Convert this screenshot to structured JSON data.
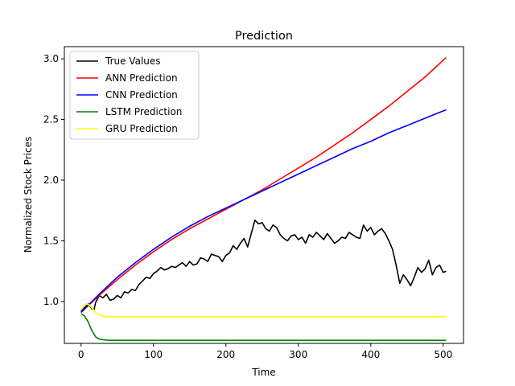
{
  "chart_data": {
    "type": "line",
    "title": "Prediction",
    "xlabel": "Time",
    "ylabel": "Normalized Stock Prices",
    "xlim": [
      -23,
      528
    ],
    "ylim": [
      0.655,
      3.1
    ],
    "xticks": [
      0,
      100,
      200,
      300,
      400,
      500
    ],
    "yticks": [
      1.0,
      1.5,
      2.0,
      2.5,
      3.0
    ],
    "ytick_labels": [
      "1.0",
      "1.5",
      "2.0",
      "2.5",
      "3.0"
    ],
    "grid": false,
    "legend": "top-left",
    "series": [
      {
        "name": "True Values",
        "color": "#000000",
        "x": [
          0,
          5,
          10,
          15,
          18,
          20,
          25,
          30,
          35,
          40,
          45,
          50,
          55,
          60,
          65,
          70,
          75,
          80,
          85,
          90,
          95,
          100,
          105,
          110,
          115,
          120,
          125,
          130,
          135,
          140,
          145,
          150,
          155,
          160,
          165,
          170,
          175,
          180,
          185,
          190,
          195,
          200,
          205,
          210,
          215,
          220,
          225,
          230,
          235,
          240,
          245,
          250,
          255,
          260,
          265,
          270,
          275,
          280,
          285,
          290,
          295,
          300,
          305,
          310,
          315,
          320,
          325,
          330,
          335,
          340,
          345,
          350,
          355,
          360,
          365,
          370,
          375,
          380,
          385,
          390,
          395,
          400,
          405,
          410,
          415,
          420,
          425,
          430,
          435,
          440,
          445,
          450,
          455,
          460,
          465,
          470,
          475,
          480,
          485,
          490,
          495,
          500,
          504
        ],
        "y": [
          0.92,
          0.95,
          0.98,
          0.94,
          0.93,
          0.99,
          1.05,
          1.03,
          1.06,
          1.01,
          1.02,
          1.05,
          1.03,
          1.08,
          1.07,
          1.1,
          1.09,
          1.14,
          1.17,
          1.2,
          1.19,
          1.23,
          1.25,
          1.28,
          1.26,
          1.27,
          1.29,
          1.28,
          1.3,
          1.32,
          1.29,
          1.33,
          1.3,
          1.31,
          1.36,
          1.35,
          1.33,
          1.39,
          1.38,
          1.37,
          1.33,
          1.38,
          1.4,
          1.46,
          1.43,
          1.48,
          1.52,
          1.45,
          1.56,
          1.67,
          1.64,
          1.65,
          1.6,
          1.58,
          1.63,
          1.61,
          1.55,
          1.52,
          1.5,
          1.54,
          1.55,
          1.51,
          1.53,
          1.48,
          1.55,
          1.53,
          1.57,
          1.54,
          1.51,
          1.56,
          1.52,
          1.48,
          1.5,
          1.53,
          1.52,
          1.57,
          1.55,
          1.53,
          1.52,
          1.63,
          1.58,
          1.61,
          1.55,
          1.58,
          1.6,
          1.56,
          1.5,
          1.43,
          1.3,
          1.15,
          1.22,
          1.18,
          1.13,
          1.2,
          1.28,
          1.24,
          1.27,
          1.34,
          1.22,
          1.28,
          1.3,
          1.24,
          1.25
        ]
      },
      {
        "name": "ANN Prediction",
        "color": "#ff0000",
        "x": [
          0,
          25,
          50,
          75,
          100,
          125,
          150,
          175,
          200,
          225,
          250,
          275,
          300,
          325,
          350,
          375,
          400,
          425,
          450,
          475,
          504
        ],
        "y": [
          0.91,
          1.05,
          1.18,
          1.3,
          1.41,
          1.51,
          1.6,
          1.68,
          1.76,
          1.84,
          1.92,
          2.01,
          2.1,
          2.19,
          2.29,
          2.39,
          2.5,
          2.61,
          2.73,
          2.85,
          3.01
        ]
      },
      {
        "name": "CNN Prediction",
        "color": "#0000ff",
        "x": [
          0,
          25,
          50,
          75,
          100,
          125,
          150,
          175,
          200,
          225,
          250,
          275,
          300,
          325,
          350,
          375,
          400,
          425,
          450,
          475,
          504
        ],
        "y": [
          0.91,
          1.06,
          1.2,
          1.32,
          1.43,
          1.53,
          1.62,
          1.7,
          1.77,
          1.84,
          1.91,
          1.98,
          2.05,
          2.12,
          2.19,
          2.26,
          2.32,
          2.39,
          2.45,
          2.51,
          2.58
        ]
      },
      {
        "name": "LSTM Prediction",
        "color": "#008000",
        "x": [
          0,
          5,
          10,
          15,
          20,
          25,
          30,
          35,
          40,
          50,
          75,
          100,
          200,
          300,
          400,
          504
        ],
        "y": [
          0.9,
          0.88,
          0.83,
          0.76,
          0.71,
          0.69,
          0.685,
          0.682,
          0.68,
          0.68,
          0.68,
          0.68,
          0.68,
          0.68,
          0.68,
          0.68
        ]
      },
      {
        "name": "GRU Prediction",
        "color": "#ffff00",
        "x": [
          0,
          5,
          8,
          12,
          16,
          20,
          25,
          30,
          35,
          40,
          50,
          100,
          200,
          300,
          400,
          504
        ],
        "y": [
          0.93,
          0.97,
          0.98,
          0.97,
          0.94,
          0.91,
          0.89,
          0.88,
          0.875,
          0.875,
          0.875,
          0.875,
          0.875,
          0.875,
          0.875,
          0.875
        ]
      }
    ]
  }
}
